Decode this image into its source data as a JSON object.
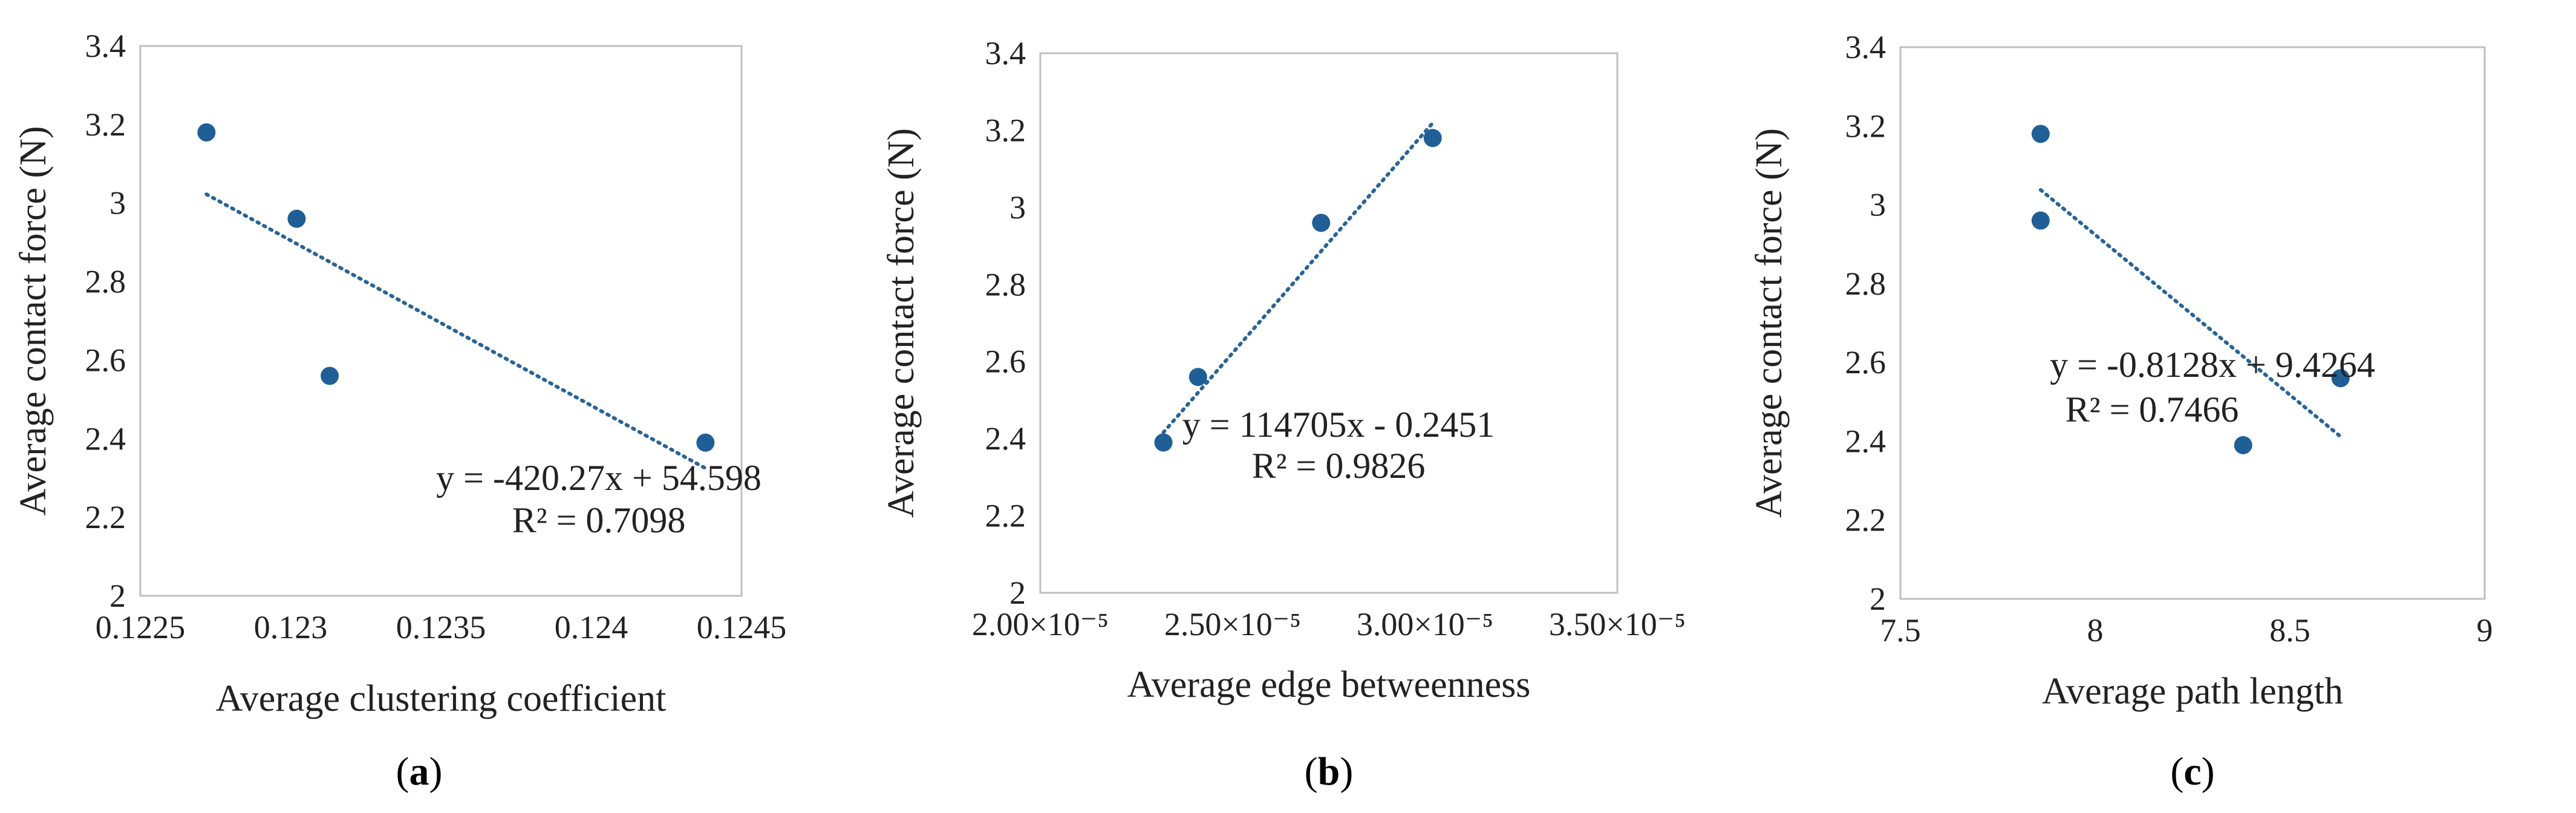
{
  "chart_data": [
    {
      "type": "scatter",
      "panel_label": "a",
      "xlabel": "Average clustering coefficient",
      "ylabel": "Average contact force (N)",
      "xlim": [
        0.1225,
        0.1245
      ],
      "ylim": [
        2,
        3.4
      ],
      "x_ticks": [
        "0.1225",
        "0.123",
        "0.1235",
        "0.124",
        "0.1245"
      ],
      "y_ticks": [
        "2",
        "2.2",
        "2.4",
        "2.6",
        "2.8",
        "3",
        "3.2",
        "3.4"
      ],
      "points": [
        {
          "x": 0.12272,
          "y": 3.18
        },
        {
          "x": 0.12302,
          "y": 2.96
        },
        {
          "x": 0.12313,
          "y": 2.56
        },
        {
          "x": 0.12438,
          "y": 2.39
        }
      ],
      "trendline": {
        "slope": -420.27,
        "intercept": 54.598,
        "x_range": [
          0.12272,
          0.12438
        ]
      },
      "equation": "y = -420.27x + 54.598",
      "r_squared": "R² = 0.7098"
    },
    {
      "type": "scatter",
      "panel_label": "b",
      "xlabel": "Average edge betweenness",
      "ylabel": "Average contact force (N)",
      "xlim": [
        2e-05,
        3.5e-05
      ],
      "ylim": [
        2,
        3.4
      ],
      "x_ticks": [
        "2.00×10⁻⁵",
        "2.50×10⁻⁵",
        "3.00×10⁻⁵",
        "3.50×10⁻⁵"
      ],
      "y_ticks": [
        "2",
        "2.2",
        "2.4",
        "2.6",
        "2.8",
        "3",
        "3.2",
        "3.4"
      ],
      "points": [
        {
          "x": 2.32e-05,
          "y": 2.39
        },
        {
          "x": 2.41e-05,
          "y": 2.56
        },
        {
          "x": 2.73e-05,
          "y": 2.96
        },
        {
          "x": 3.02e-05,
          "y": 3.18
        }
      ],
      "trendline": {
        "slope": 114705,
        "intercept": -0.2451,
        "x_range": [
          2.32e-05,
          3.02e-05
        ]
      },
      "equation": "y = 114705x - 0.2451",
      "r_squared": "R² = 0.9826"
    },
    {
      "type": "scatter",
      "panel_label": "c",
      "xlabel": "Average path length",
      "ylabel": "Average contact force (N)",
      "xlim": [
        7.5,
        9
      ],
      "ylim": [
        2,
        3.4
      ],
      "x_ticks": [
        "7.5",
        "8",
        "8.5",
        "9"
      ],
      "y_ticks": [
        "2",
        "2.2",
        "2.4",
        "2.6",
        "2.8",
        "3",
        "3.2",
        "3.4"
      ],
      "points": [
        {
          "x": 7.86,
          "y": 3.18
        },
        {
          "x": 7.86,
          "y": 2.96
        },
        {
          "x": 8.38,
          "y": 2.39
        },
        {
          "x": 8.63,
          "y": 2.56
        }
      ],
      "trendline": {
        "slope": -0.8128,
        "intercept": 9.4264,
        "x_range": [
          7.86,
          8.63
        ]
      },
      "equation": "y = -0.8128x + 9.4264",
      "r_squared": "R² = 0.7466"
    }
  ],
  "colors": {
    "point": "#1f5f96",
    "trendline": "#2a6496",
    "frame": "#bfbfbf"
  }
}
